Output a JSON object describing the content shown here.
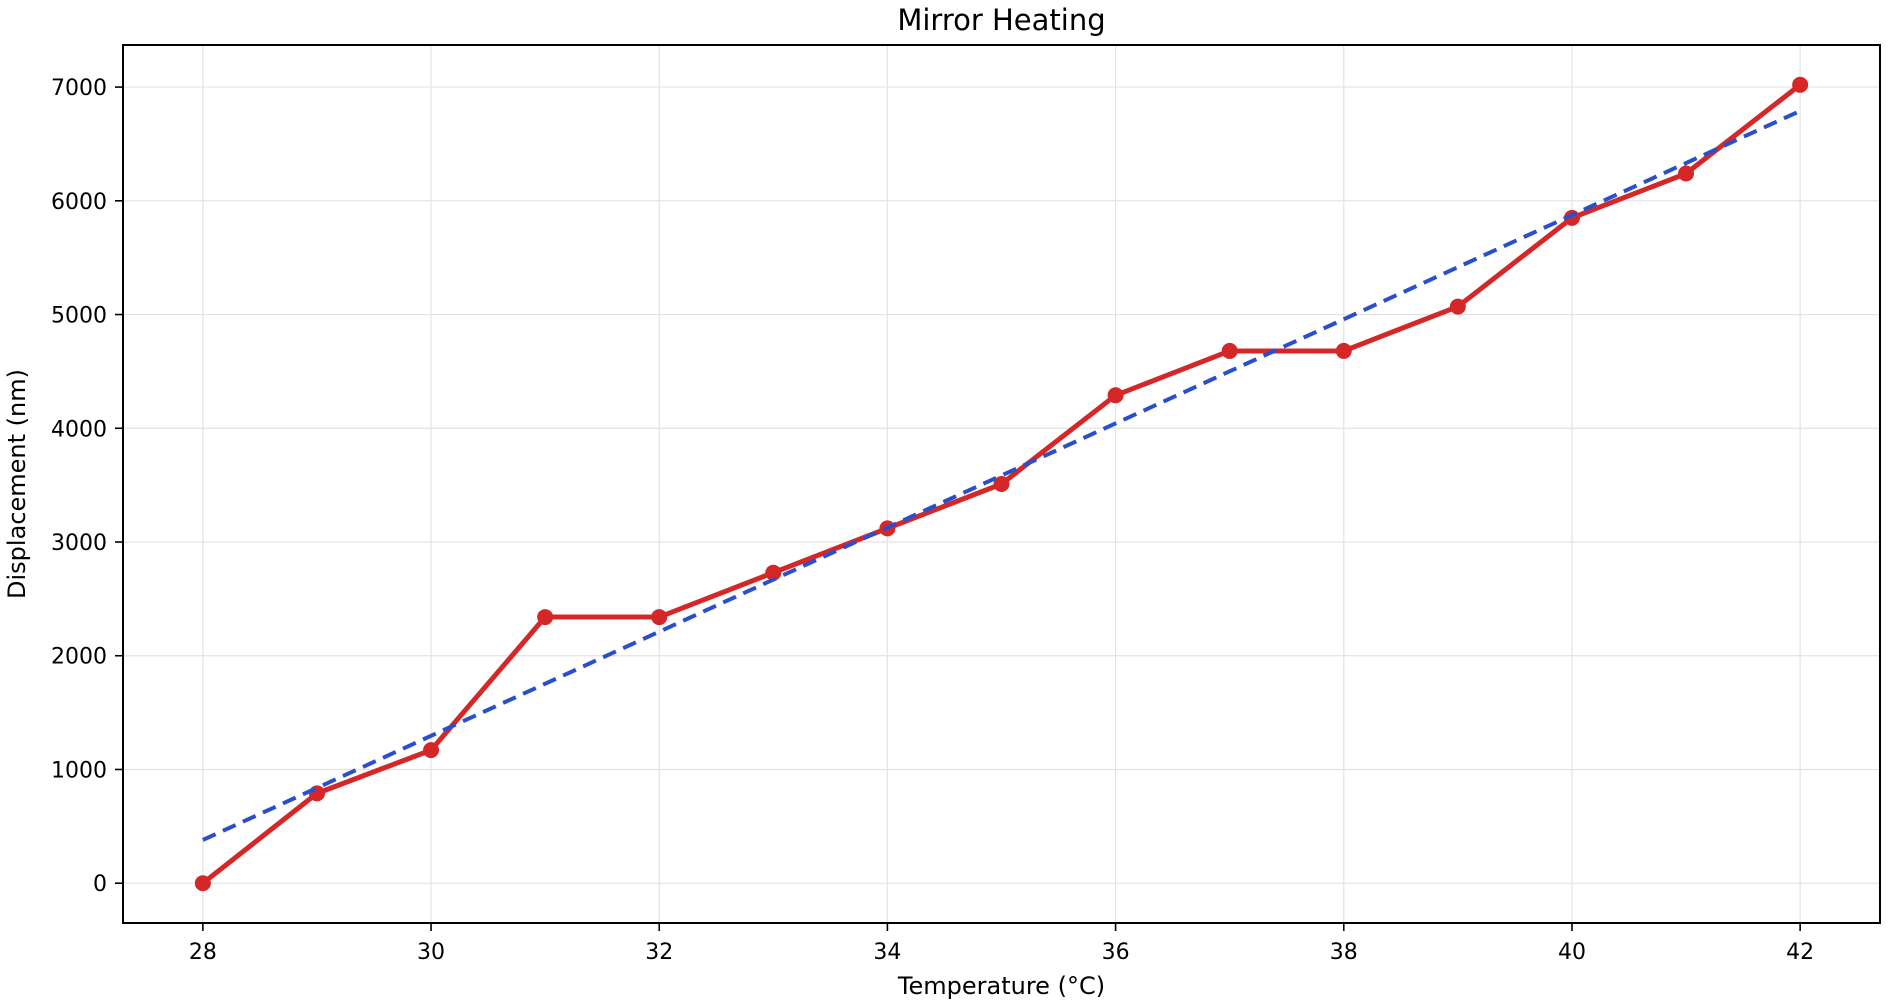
{
  "chart_data": {
    "type": "line",
    "title": "Mirror Heating",
    "xlabel": "Temperature (°C)",
    "ylabel": "Displacement (nm)",
    "xlim": [
      27.3,
      42.7
    ],
    "ylim": [
      -350,
      7370
    ],
    "x_ticks": [
      28,
      30,
      32,
      34,
      36,
      38,
      40,
      42
    ],
    "y_ticks": [
      0,
      1000,
      2000,
      3000,
      4000,
      5000,
      6000,
      7000
    ],
    "grid": true,
    "legend": "none",
    "series": [
      {
        "style": "solid-with-markers",
        "color": "#d62728",
        "x": [
          28,
          29,
          30,
          31,
          32,
          33,
          34,
          35,
          36,
          37,
          38,
          39,
          40,
          41,
          42
        ],
        "y": [
          0,
          790,
          1170,
          2340,
          2340,
          2730,
          3120,
          3510,
          4290,
          4680,
          4680,
          5070,
          5850,
          6240,
          7020
        ]
      },
      {
        "style": "dashed",
        "color": "#2a4fcc",
        "x": [
          28,
          42
        ],
        "y": [
          380,
          6790
        ]
      }
    ]
  }
}
